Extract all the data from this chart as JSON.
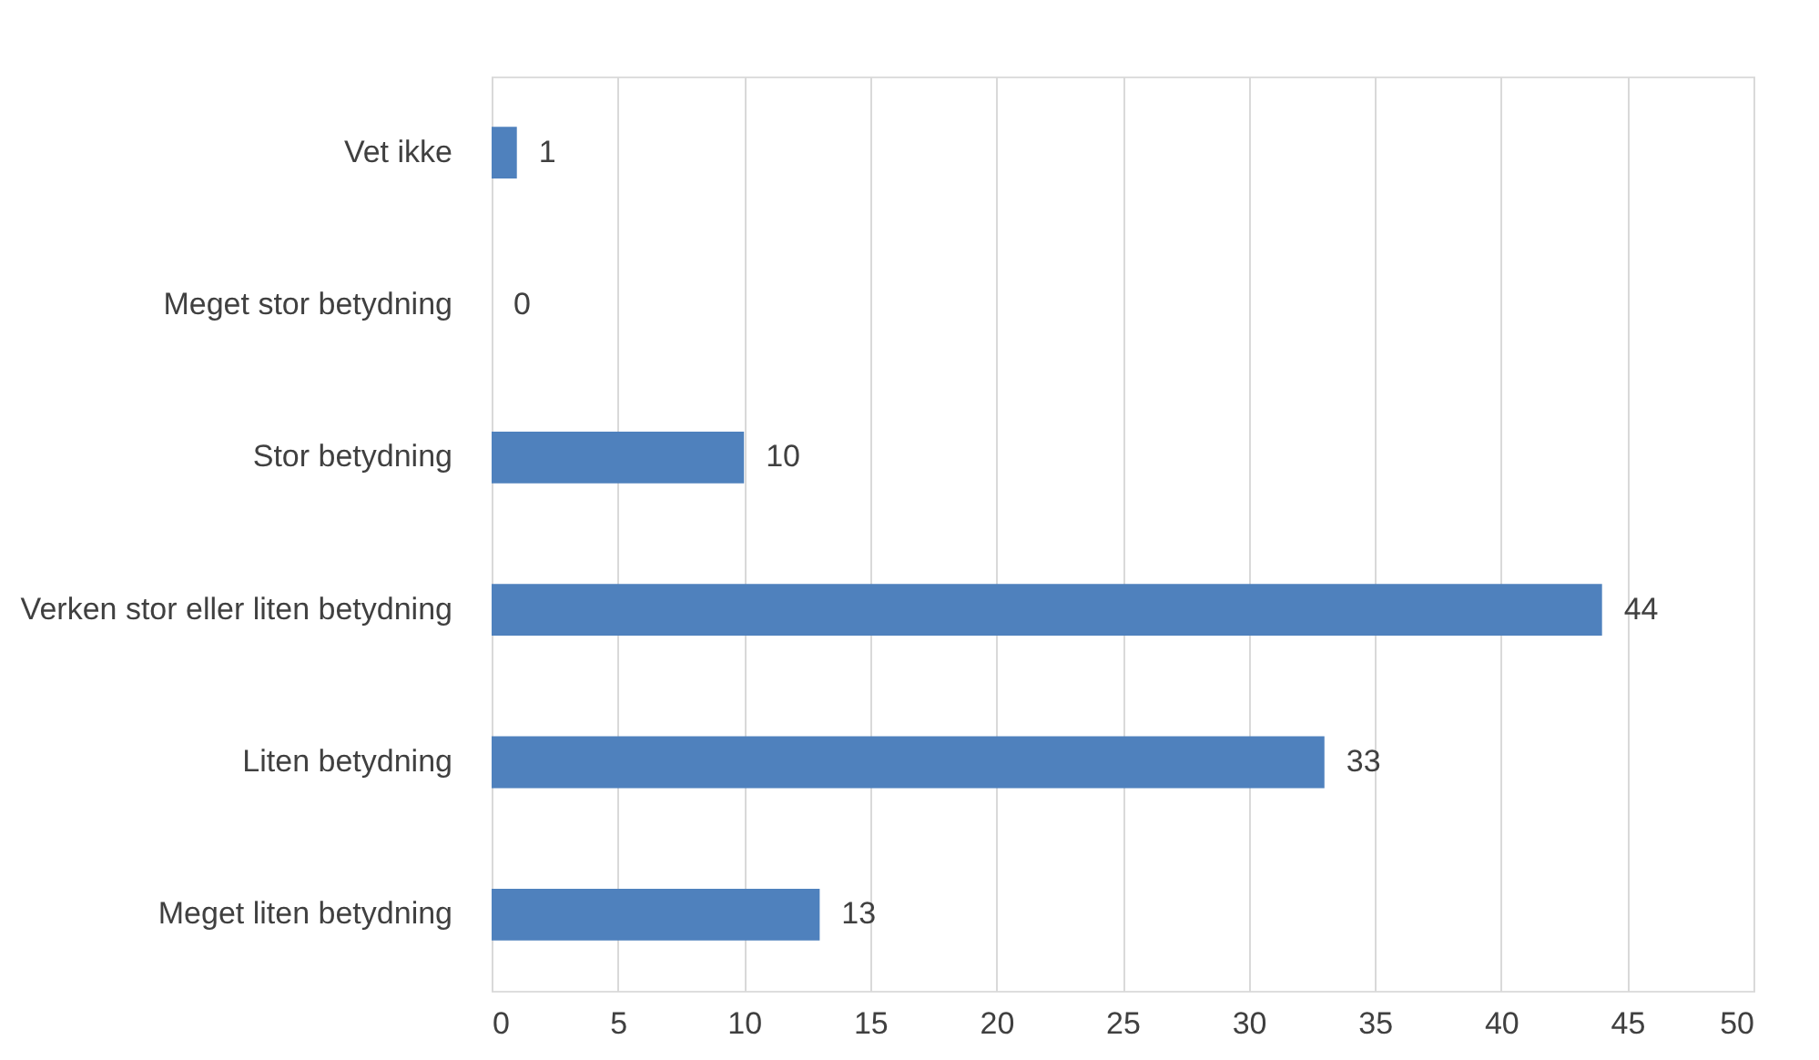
{
  "chart_data": {
    "type": "bar",
    "orientation": "horizontal",
    "categories": [
      "Vet ikke",
      "Meget stor betydning",
      "Stor betydning",
      "Verken stor eller liten betydning",
      "Liten betydning",
      "Meget liten betydning"
    ],
    "values": [
      1,
      0,
      10,
      44,
      33,
      13
    ],
    "color": "#4f81bd",
    "xlim": [
      0,
      50
    ],
    "xticks": [
      0,
      5,
      10,
      15,
      20,
      25,
      30,
      35,
      40,
      45,
      50
    ],
    "grid": "x",
    "data_labels": true
  }
}
